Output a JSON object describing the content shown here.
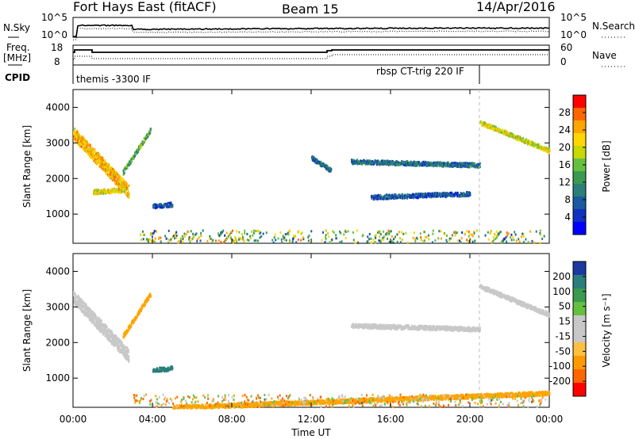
{
  "header": {
    "station": "Fort Hays East (fitACF)",
    "beam": "Beam 15",
    "date": "14/Apr/2016"
  },
  "top_panels": {
    "nsky_label": "N.Sky",
    "nsearch_label": "N.Search",
    "freq_label_1": "Freq.",
    "freq_label_2": "[MHz]",
    "nave_label": "Nave",
    "cpid_label": "CPID",
    "nsky_ticks": [
      "10^5",
      "10^0"
    ],
    "nsearch_ticks": [
      "10^5",
      "10^0"
    ],
    "freq_ticks": [
      "18",
      "8"
    ],
    "nave_ticks": [
      "60",
      "0"
    ],
    "cpid_modes": [
      "themis -3300 IF",
      "rbsp CT-trig 220 IF"
    ]
  },
  "colorbars": {
    "power": {
      "label": "Power [dB]",
      "ticks": [
        "28",
        "24",
        "20",
        "16",
        "12",
        "8",
        "4"
      ],
      "colors": [
        "#ff0000",
        "#ff6600",
        "#ffa500",
        "#ffd700",
        "#c8d800",
        "#66c040",
        "#3a9a50",
        "#2a7f7a",
        "#1a5aa0",
        "#1030c0",
        "#0000ff"
      ]
    },
    "velocity": {
      "label": "Velocity [m s⁻¹]",
      "ticks": [
        "200",
        "100",
        "50",
        "15",
        "-15",
        "-50",
        "-100",
        "-200"
      ],
      "colors": [
        "#1a3aa0",
        "#2a7f7a",
        "#3a9a50",
        "#66c040",
        "#c8c8c8",
        "#c8c8c8",
        "#ffc040",
        "#ff9900",
        "#ff6600",
        "#ff0000"
      ]
    }
  },
  "axes": {
    "ylabel": "Slant Range [km]",
    "xlabel": "Time UT",
    "yticks": [
      "4000",
      "3000",
      "2000",
      "1000"
    ],
    "xticks": [
      "00:00",
      "04:00",
      "08:00",
      "12:00",
      "16:00",
      "20:00",
      "00:00"
    ]
  },
  "chart_data": [
    {
      "type": "heatmap",
      "name": "power",
      "xlabel": "Time UT",
      "ylabel": "Slant Range [km]",
      "x_range_hours": [
        0,
        24
      ],
      "ylim": [
        180,
        4500
      ],
      "color_scale": "Power [dB]",
      "scatter_bands": [
        {
          "t_start": 0.0,
          "t_end": 2.8,
          "range_start": 3300,
          "range_end": 1650,
          "value": 24
        },
        {
          "t_start": 1.0,
          "t_end": 2.6,
          "range_start": 1650,
          "range_end": 1700,
          "value": 22
        },
        {
          "t_start": 2.5,
          "t_end": 3.9,
          "range_start": 2200,
          "range_end": 3400,
          "value": 14
        },
        {
          "t_start": 4.0,
          "t_end": 5.0,
          "range_start": 1250,
          "range_end": 1300,
          "value": 6
        },
        {
          "t_start": 12.0,
          "t_end": 13.0,
          "range_start": 2600,
          "range_end": 2250,
          "value": 8
        },
        {
          "t_start": 14.0,
          "t_end": 20.5,
          "range_start": 2500,
          "range_end": 2400,
          "value": 8
        },
        {
          "t_start": 15.0,
          "t_end": 20.0,
          "range_start": 1500,
          "range_end": 1600,
          "value": 6
        },
        {
          "t_start": 20.5,
          "t_end": 24.0,
          "range_start": 3600,
          "range_end": 2800,
          "value": 20
        }
      ]
    },
    {
      "type": "heatmap",
      "name": "velocity",
      "xlabel": "Time UT",
      "ylabel": "Slant Range [km]",
      "x_range_hours": [
        0,
        24
      ],
      "ylim": [
        180,
        4500
      ],
      "color_scale": "Velocity [m s⁻¹]",
      "scatter_bands": [
        {
          "t_start": 0.0,
          "t_end": 2.8,
          "range_start": 3300,
          "range_end": 1650,
          "value": 0
        },
        {
          "t_start": 2.5,
          "t_end": 3.9,
          "range_start": 2200,
          "range_end": 3400,
          "value": -50
        },
        {
          "t_start": 4.0,
          "t_end": 5.0,
          "range_start": 1250,
          "range_end": 1300,
          "value": 100
        },
        {
          "t_start": 14.0,
          "t_end": 20.5,
          "range_start": 2500,
          "range_end": 2400,
          "value": 0
        },
        {
          "t_start": 20.5,
          "t_end": 24.0,
          "range_start": 3600,
          "range_end": 2800,
          "value": 0
        },
        {
          "t_start": 5.0,
          "t_end": 24.0,
          "range_start": 200,
          "range_end": 600,
          "value": -50
        }
      ]
    }
  ]
}
